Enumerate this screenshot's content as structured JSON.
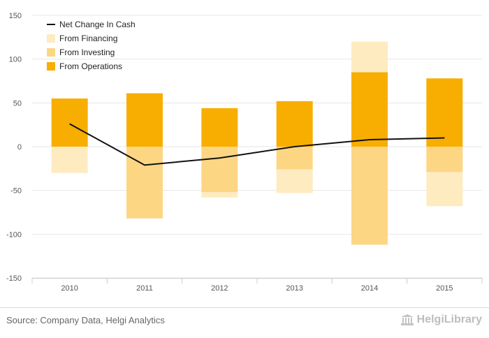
{
  "chart_data": {
    "type": "bar",
    "stacked": true,
    "categories": [
      "2010",
      "2011",
      "2012",
      "2013",
      "2014",
      "2015"
    ],
    "series": [
      {
        "name": "From Operations",
        "kind": "bar",
        "color": "#f7ae00",
        "values": [
          55,
          61,
          44,
          52,
          85,
          78
        ]
      },
      {
        "name": "From Investing",
        "kind": "bar",
        "color": "#fdd684",
        "values": [
          0,
          -82,
          -52,
          -26,
          -112,
          -29
        ]
      },
      {
        "name": "From Financing",
        "kind": "bar",
        "color": "#feebc0",
        "values": [
          -30,
          0,
          -6,
          -27,
          35,
          -39
        ]
      },
      {
        "name": "Net Change In Cash",
        "kind": "line",
        "color": "#111111",
        "values": [
          26,
          -21,
          -13,
          0,
          8,
          10
        ]
      }
    ],
    "ylim": [
      -150,
      150
    ],
    "yticks": [
      -150,
      -100,
      -50,
      0,
      50,
      100,
      150
    ],
    "grid": true,
    "legend_position": "top-left",
    "legend_order": [
      "Net Change In Cash",
      "From Financing",
      "From Investing",
      "From Operations"
    ]
  },
  "footer": {
    "source": "Source: Company Data, Helgi Analytics",
    "brand": "HelgiLibrary",
    "brand_icon": "library-building-icon"
  }
}
